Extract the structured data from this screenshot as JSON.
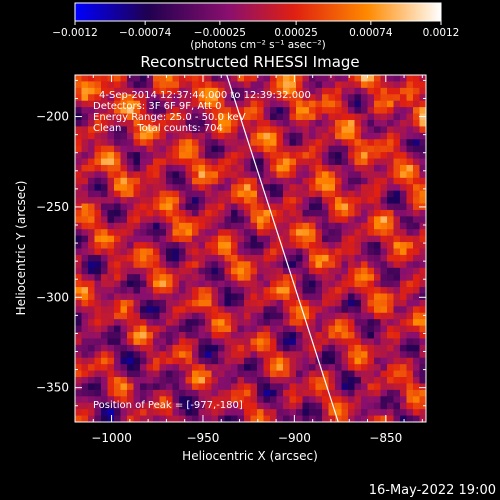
{
  "chart_data": {
    "type": "heatmap",
    "title": "Reconstructed RHESSI Image",
    "xlabel": "Heliocentric X (arcsec)",
    "ylabel": "Heliocentric Y (arcsec)",
    "xlim": [
      -1020,
      -828
    ],
    "ylim": [
      -369,
      -177
    ],
    "x_ticks": [
      "−1000",
      "−950",
      "−900",
      "−850"
    ],
    "x_tick_values": [
      -1000,
      -950,
      -900,
      -850
    ],
    "y_ticks": [
      "−200",
      "−250",
      "−300",
      "−350"
    ],
    "y_tick_values": [
      -200,
      -250,
      -300,
      -350
    ],
    "colorbar": {
      "ticks": [
        "−0.0012",
        "−0.00074",
        "−0.00025",
        "0.00025",
        "0.00074",
        "0.0012"
      ],
      "range": [
        -0.0012,
        0.0012
      ],
      "colormap": [
        "#0000ff",
        "#200050",
        "#8a0f6e",
        "#e02010",
        "#ff8a00",
        "#ffffff"
      ],
      "units_label": "(photons cm⁻² s⁻¹ asec⁻²)"
    },
    "annotations": [
      "4-Sep-2014 12:37:44.000 to 12:39:32.000",
      "Detectors: 3F 6F 9F, Att 0",
      "Energy Range: 25.0 - 50.0 keV",
      "Clean     Total counts: 704",
      "Position of Peak = [-977,-180]"
    ],
    "limb_line": {
      "x": [
        -937,
        -876
      ],
      "y": [
        -177,
        -369
      ]
    }
  },
  "footer_date": "16-May-2022 19:00"
}
